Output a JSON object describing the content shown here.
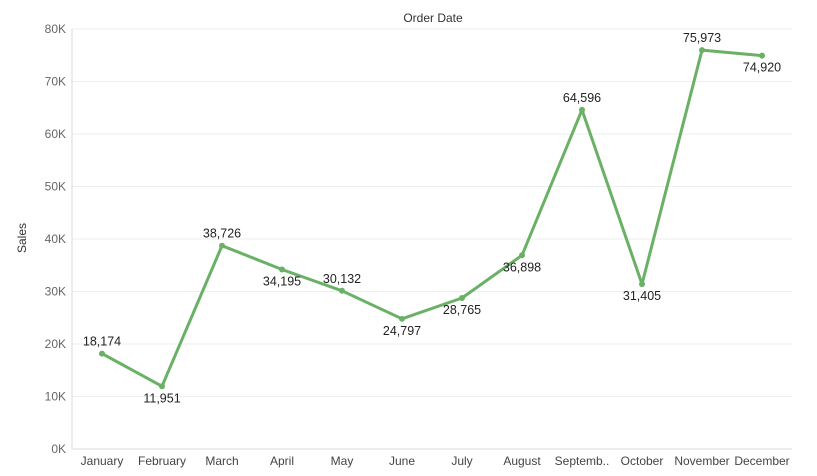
{
  "chart_data": {
    "type": "line",
    "title": "Order Date",
    "xlabel": "",
    "ylabel": "Sales",
    "categories": [
      "January",
      "February",
      "March",
      "April",
      "May",
      "June",
      "July",
      "August",
      "Septemb..",
      "October",
      "November",
      "December"
    ],
    "series": [
      {
        "values": [
          18174,
          11951,
          38726,
          34195,
          30132,
          24797,
          28765,
          36898,
          64596,
          31405,
          75973,
          74920
        ],
        "labels": [
          "18,174",
          "11,951",
          "38,726",
          "34,195",
          "30,132",
          "24,797",
          "28,765",
          "36,898",
          "64,596",
          "31,405",
          "75,973",
          "74,920"
        ],
        "label_positions": [
          "above",
          "below",
          "above",
          "below",
          "above",
          "below",
          "below",
          "below",
          "above",
          "below",
          "above",
          "below"
        ],
        "color": "#6ab165"
      }
    ],
    "ylim": [
      0,
      80000
    ],
    "y_ticks": [
      0,
      10000,
      20000,
      30000,
      40000,
      50000,
      60000,
      70000,
      80000
    ],
    "y_tick_labels": [
      "0K",
      "10K",
      "20K",
      "30K",
      "40K",
      "50K",
      "60K",
      "70K",
      "80K"
    ],
    "grid": true,
    "legend": "none"
  }
}
